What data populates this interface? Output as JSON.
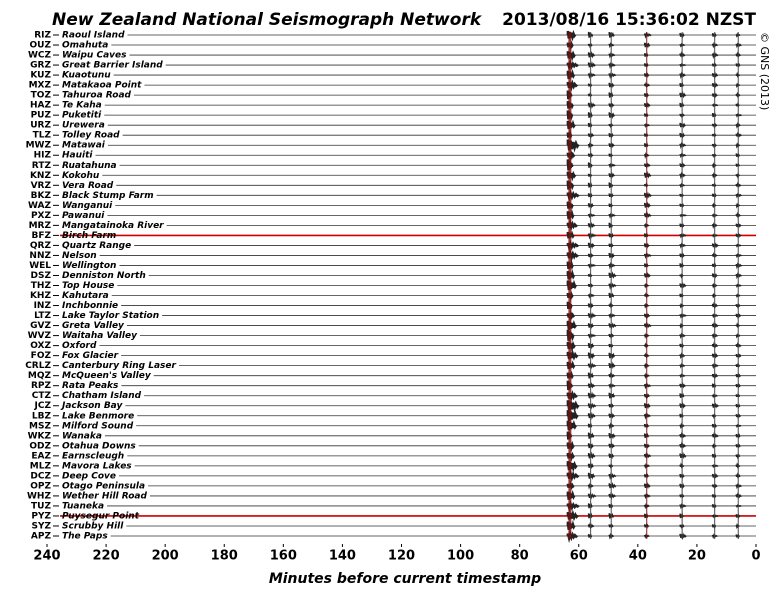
{
  "chart_data": {
    "type": "seismogram",
    "title": "New Zealand National Seismograph Network",
    "timestamp": "2013/08/16 15:36:02 NZST",
    "credit": "© GNS (2013)",
    "x_label": "Minutes before current timestamp",
    "xlim": [
      240,
      0
    ],
    "xticks": [
      240,
      220,
      200,
      180,
      160,
      140,
      120,
      100,
      80,
      60,
      40,
      20,
      0
    ],
    "stations": [
      {
        "code": "RIZ",
        "name": "Raoul Island"
      },
      {
        "code": "OUZ",
        "name": "Omahuta"
      },
      {
        "code": "WCZ",
        "name": "Waipu Caves"
      },
      {
        "code": "GRZ",
        "name": "Great Barrier Island"
      },
      {
        "code": "KUZ",
        "name": "Kuaotunu"
      },
      {
        "code": "MXZ",
        "name": "Matakaoa Point"
      },
      {
        "code": "TOZ",
        "name": "Tahuroa Road"
      },
      {
        "code": "HAZ",
        "name": "Te Kaha"
      },
      {
        "code": "PUZ",
        "name": "Puketiti"
      },
      {
        "code": "URZ",
        "name": "Urewera"
      },
      {
        "code": "TLZ",
        "name": "Tolley Road"
      },
      {
        "code": "MWZ",
        "name": "Matawai"
      },
      {
        "code": "HIZ",
        "name": "Hauiti"
      },
      {
        "code": "RTZ",
        "name": "Ruatahuna"
      },
      {
        "code": "KNZ",
        "name": "Kokohu"
      },
      {
        "code": "VRZ",
        "name": "Vera Road"
      },
      {
        "code": "BKZ",
        "name": "Black Stump Farm"
      },
      {
        "code": "WAZ",
        "name": "Wanganui"
      },
      {
        "code": "PXZ",
        "name": "Pawanui"
      },
      {
        "code": "MRZ",
        "name": "Mangatainoka River"
      },
      {
        "code": "BFZ",
        "name": "Birch Farm"
      },
      {
        "code": "QRZ",
        "name": "Quartz Range"
      },
      {
        "code": "NNZ",
        "name": "Nelson"
      },
      {
        "code": "WEL",
        "name": "Wellington"
      },
      {
        "code": "DSZ",
        "name": "Denniston North"
      },
      {
        "code": "THZ",
        "name": "Top House"
      },
      {
        "code": "KHZ",
        "name": "Kahutara"
      },
      {
        "code": "INZ",
        "name": "Inchbonnie"
      },
      {
        "code": "LTZ",
        "name": "Lake Taylor Station"
      },
      {
        "code": "GVZ",
        "name": "Greta Valley"
      },
      {
        "code": "WVZ",
        "name": "Waitaha Valley"
      },
      {
        "code": "OXZ",
        "name": "Oxford"
      },
      {
        "code": "FOZ",
        "name": "Fox Glacier"
      },
      {
        "code": "CRLZ",
        "name": "Canterbury Ring Laser"
      },
      {
        "code": "MQZ",
        "name": "McQueen's Valley"
      },
      {
        "code": "RPZ",
        "name": "Rata Peaks"
      },
      {
        "code": "CTZ",
        "name": "Chatham Island"
      },
      {
        "code": "JCZ",
        "name": "Jackson Bay"
      },
      {
        "code": "LBZ",
        "name": "Lake Benmore"
      },
      {
        "code": "MSZ",
        "name": "Milford Sound"
      },
      {
        "code": "WKZ",
        "name": "Wanaka"
      },
      {
        "code": "ODZ",
        "name": "Otahua Downs"
      },
      {
        "code": "EAZ",
        "name": "Earnscleugh"
      },
      {
        "code": "MLZ",
        "name": "Mavora Lakes"
      },
      {
        "code": "DCZ",
        "name": "Deep Cove"
      },
      {
        "code": "OPZ",
        "name": "Otago Peninsula"
      },
      {
        "code": "WHZ",
        "name": "Wether Hill Road"
      },
      {
        "code": "TUZ",
        "name": "Tuaneka"
      },
      {
        "code": "PYZ",
        "name": "Puysegur Point"
      },
      {
        "code": "SYZ",
        "name": "Scrubby Hill"
      },
      {
        "code": "APZ",
        "name": "The Paps"
      }
    ],
    "highlight_rows": [
      20,
      48
    ],
    "highlight_color": "#cc0000",
    "trace_color": "#333333",
    "events": [
      63,
      56,
      49,
      37,
      25,
      14,
      6
    ]
  }
}
